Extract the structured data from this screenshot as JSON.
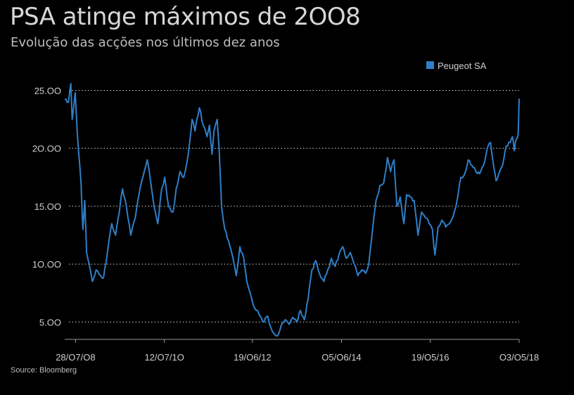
{
  "header": {
    "title": "PSA atinge máximos de 2OO8",
    "subtitle": "Evolução das acções nos últimos dez anos"
  },
  "source": "Source: Bloomberg",
  "colors": {
    "background": "#000000",
    "series": "#2f7fc8",
    "grid": "#d8d8d8",
    "text": "#cfcfcf"
  },
  "chart_data": {
    "type": "line",
    "title": "PSA atinge máximos de 2OO8",
    "subtitle": "Evolução das acções nos últimos dez anos",
    "xlabel": "",
    "ylabel": "",
    "ylim": [
      3.5,
      26
    ],
    "yticks": [
      5,
      10,
      15,
      20,
      25
    ],
    "ytick_labels": [
      "5.OO",
      "1O.OO",
      "15.OO",
      "2O.OO",
      "25.OO"
    ],
    "x_range": [
      "2008-05-02",
      "2018-05-03"
    ],
    "xticks": [
      "2008-07-28",
      "2010-07-12",
      "2012-06-19",
      "2014-06-05",
      "2016-05-19",
      "2018-05-03"
    ],
    "xtick_labels": [
      "28/O7/O8",
      "12/O7/1O",
      "19/O6/12",
      "O5/O6/14",
      "19/O5/16",
      "O3/O5/18"
    ],
    "grid": "horizontal dotted",
    "legend": "top-right",
    "series": [
      {
        "name": "Peugeot SA",
        "color": "#2f7fc8",
        "points": [
          [
            "2008-05-02",
            24.2
          ],
          [
            "2008-06-01",
            24.0
          ],
          [
            "2008-06-20",
            25.6
          ],
          [
            "2008-07-01",
            22.5
          ],
          [
            "2008-07-25",
            24.8
          ],
          [
            "2008-08-10",
            21.5
          ],
          [
            "2008-09-10",
            17.0
          ],
          [
            "2008-09-25",
            13.0
          ],
          [
            "2008-10-10",
            15.5
          ],
          [
            "2008-10-25",
            11.0
          ],
          [
            "2008-11-15",
            10.0
          ],
          [
            "2008-12-10",
            8.5
          ],
          [
            "2009-01-10",
            9.5
          ],
          [
            "2009-02-15",
            9.0
          ],
          [
            "2009-03-10",
            8.8
          ],
          [
            "2009-04-10",
            11.0
          ],
          [
            "2009-05-15",
            13.5
          ],
          [
            "2009-06-15",
            12.5
          ],
          [
            "2009-07-15",
            14.5
          ],
          [
            "2009-08-10",
            16.5
          ],
          [
            "2009-09-10",
            15.0
          ],
          [
            "2009-10-15",
            12.5
          ],
          [
            "2009-11-20",
            14.0
          ],
          [
            "2009-12-20",
            16.0
          ],
          [
            "2010-01-20",
            17.5
          ],
          [
            "2010-02-25",
            19.0
          ],
          [
            "2010-03-25",
            17.0
          ],
          [
            "2010-04-20",
            15.0
          ],
          [
            "2010-05-20",
            13.5
          ],
          [
            "2010-06-20",
            16.5
          ],
          [
            "2010-07-15",
            17.5
          ],
          [
            "2010-08-15",
            15.0
          ],
          [
            "2010-09-20",
            14.5
          ],
          [
            "2010-10-15",
            16.5
          ],
          [
            "2010-11-15",
            18.0
          ],
          [
            "2010-12-15",
            17.5
          ],
          [
            "2011-01-20",
            19.5
          ],
          [
            "2011-02-20",
            22.5
          ],
          [
            "2011-03-15",
            21.5
          ],
          [
            "2011-04-20",
            23.5
          ],
          [
            "2011-05-20",
            22.0
          ],
          [
            "2011-06-20",
            21.0
          ],
          [
            "2011-07-10",
            22.0
          ],
          [
            "2011-07-30",
            19.5
          ],
          [
            "2011-08-15",
            21.5
          ],
          [
            "2011-09-10",
            22.5
          ],
          [
            "2011-09-25",
            20.0
          ],
          [
            "2011-10-15",
            15.0
          ],
          [
            "2011-11-10",
            13.0
          ],
          [
            "2011-12-10",
            12.0
          ],
          [
            "2012-01-15",
            10.5
          ],
          [
            "2012-02-10",
            9.0
          ],
          [
            "2012-03-10",
            11.5
          ],
          [
            "2012-04-10",
            10.5
          ],
          [
            "2012-05-05",
            8.5
          ],
          [
            "2012-06-01",
            7.5
          ],
          [
            "2012-06-25",
            6.5
          ],
          [
            "2012-07-20",
            6.0
          ],
          [
            "2012-08-20",
            5.5
          ],
          [
            "2012-09-20",
            5.0
          ],
          [
            "2012-10-20",
            5.5
          ],
          [
            "2012-11-15",
            4.5
          ],
          [
            "2012-12-10",
            4.0
          ],
          [
            "2013-01-05",
            3.8
          ],
          [
            "2013-02-05",
            4.7
          ],
          [
            "2013-03-10",
            5.2
          ],
          [
            "2013-04-10",
            4.8
          ],
          [
            "2013-05-10",
            5.4
          ],
          [
            "2013-06-10",
            5.0
          ],
          [
            "2013-07-10",
            6.0
          ],
          [
            "2013-08-10",
            5.2
          ],
          [
            "2013-09-10",
            7.0
          ],
          [
            "2013-10-10",
            9.5
          ],
          [
            "2013-11-10",
            10.3
          ],
          [
            "2013-12-10",
            9.2
          ],
          [
            "2014-01-15",
            8.5
          ],
          [
            "2014-02-15",
            9.5
          ],
          [
            "2014-03-15",
            10.5
          ],
          [
            "2014-04-15",
            9.8
          ],
          [
            "2014-05-15",
            10.8
          ],
          [
            "2014-06-15",
            11.5
          ],
          [
            "2014-07-15",
            10.5
          ],
          [
            "2014-08-15",
            11.0
          ],
          [
            "2014-09-15",
            10.0
          ],
          [
            "2014-10-15",
            9.0
          ],
          [
            "2014-11-15",
            9.5
          ],
          [
            "2014-12-15",
            9.2
          ],
          [
            "2015-01-10",
            10.0
          ],
          [
            "2015-02-10",
            13.0
          ],
          [
            "2015-03-10",
            15.5
          ],
          [
            "2015-04-10",
            16.8
          ],
          [
            "2015-05-10",
            17.0
          ],
          [
            "2015-06-10",
            19.2
          ],
          [
            "2015-07-05",
            18.0
          ],
          [
            "2015-08-01",
            19.0
          ],
          [
            "2015-08-25",
            15.0
          ],
          [
            "2015-09-20",
            15.8
          ],
          [
            "2015-10-20",
            13.5
          ],
          [
            "2015-11-10",
            16.0
          ],
          [
            "2015-12-10",
            15.8
          ],
          [
            "2016-01-10",
            15.5
          ],
          [
            "2016-02-10",
            12.5
          ],
          [
            "2016-03-10",
            14.5
          ],
          [
            "2016-04-10",
            14.0
          ],
          [
            "2016-05-10",
            13.5
          ],
          [
            "2016-06-05",
            13.0
          ],
          [
            "2016-06-25",
            10.8
          ],
          [
            "2016-07-20",
            13.2
          ],
          [
            "2016-08-20",
            13.8
          ],
          [
            "2016-09-20",
            13.2
          ],
          [
            "2016-10-20",
            13.5
          ],
          [
            "2016-11-20",
            14.2
          ],
          [
            "2016-12-20",
            15.5
          ],
          [
            "2017-01-20",
            17.5
          ],
          [
            "2017-02-20",
            17.8
          ],
          [
            "2017-03-20",
            19.0
          ],
          [
            "2017-04-20",
            18.5
          ],
          [
            "2017-05-20",
            18.0
          ],
          [
            "2017-06-20",
            17.8
          ],
          [
            "2017-07-20",
            18.5
          ],
          [
            "2017-08-20",
            20.0
          ],
          [
            "2017-09-15",
            20.5
          ],
          [
            "2017-10-10",
            18.5
          ],
          [
            "2017-10-30",
            17.2
          ],
          [
            "2017-11-20",
            17.8
          ],
          [
            "2017-12-20",
            18.5
          ],
          [
            "2018-01-20",
            20.2
          ],
          [
            "2018-02-20",
            20.5
          ],
          [
            "2018-03-10",
            21.0
          ],
          [
            "2018-03-25",
            19.8
          ],
          [
            "2018-04-10",
            20.8
          ],
          [
            "2018-04-25",
            21.2
          ],
          [
            "2018-05-03",
            24.3
          ]
        ]
      }
    ]
  }
}
